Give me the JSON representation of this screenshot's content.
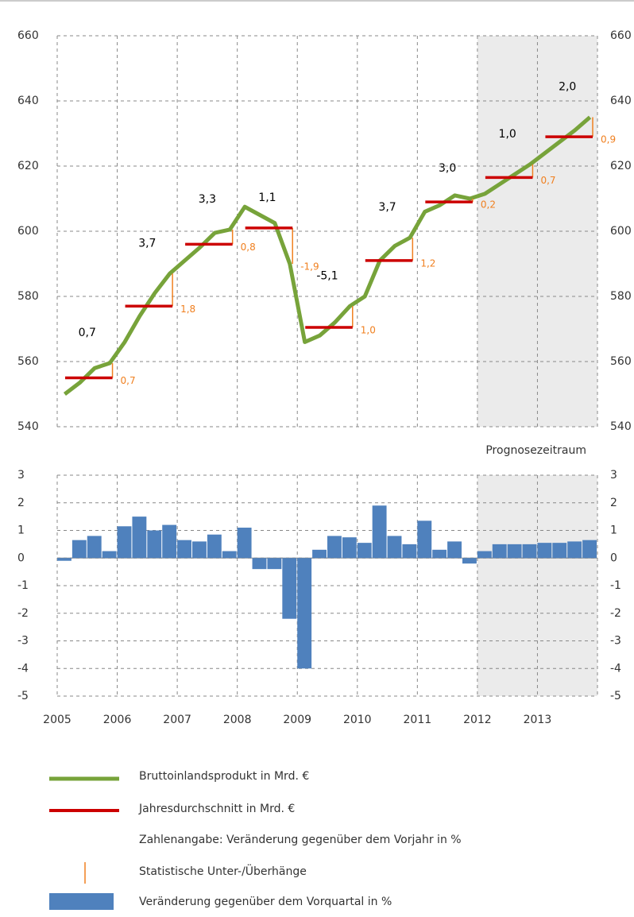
{
  "chart_data": [
    {
      "type": "line",
      "categories": [
        "2005",
        null,
        null,
        null,
        "2006",
        null,
        null,
        null,
        "2007",
        null,
        null,
        null,
        "2008",
        null,
        null,
        null,
        "2009",
        null,
        null,
        null,
        "2010",
        null,
        null,
        null,
        "2011",
        null,
        null,
        null,
        "2012",
        null,
        null,
        null,
        "2013",
        null,
        null,
        null
      ],
      "series": [
        {
          "name": "Bruttoinlandsprodukt in Mrd. €",
          "color": "#77a33a",
          "values": [
            550,
            553.5,
            558,
            559.5,
            566,
            574,
            581,
            587,
            591,
            595,
            599.5,
            600.5,
            607.5,
            605,
            602.5,
            590,
            566,
            568,
            572,
            577,
            580,
            591,
            595.5,
            598,
            606,
            608,
            611,
            610,
            611.5,
            614.5,
            617.5,
            620.5,
            624,
            627.5,
            631,
            635
          ]
        }
      ],
      "annual": {
        "name": "Jahresdurchschnitt in Mrd. €",
        "color": "#cc0000",
        "values": [
          555,
          577,
          596,
          601,
          570.5,
          591,
          609,
          616.5,
          629
        ]
      },
      "changes": {
        "name": "Zahlenangabe: Veränderung gegenüber dem Vorjahr in %",
        "values": [
          0.7,
          3.7,
          3.3,
          1.1,
          -5.1,
          3.7,
          3.0,
          1.0,
          2.0
        ],
        "value_labels": [
          "0,7",
          "3,7",
          "3,3",
          "1,1",
          "-5,1",
          "3,7",
          "3,0",
          "1,0",
          "2,0"
        ]
      },
      "overhangs": {
        "name": "Statistische Unter-/Überhänge",
        "color": "#f08020",
        "values": [
          0.7,
          1.8,
          0.8,
          -1.9,
          1.0,
          1.2,
          0.2,
          0.7,
          0.9
        ],
        "value_labels": [
          "0,7",
          "1,8",
          "0,8",
          "-1,9",
          "1,0",
          "1,2",
          "0,2",
          "0,7",
          "0,9"
        ]
      },
      "ylim": [
        540,
        660
      ],
      "yticks": [
        540,
        560,
        580,
        600,
        620,
        640,
        660
      ],
      "grid": true,
      "forecast": {
        "label": "Prognosezeitraum",
        "from": "2012"
      }
    },
    {
      "type": "bar",
      "categories": [
        "2005",
        null,
        null,
        null,
        "2006",
        null,
        null,
        null,
        "2007",
        null,
        null,
        null,
        "2008",
        null,
        null,
        null,
        "2009",
        null,
        null,
        null,
        "2010",
        null,
        null,
        null,
        "2011",
        null,
        null,
        null,
        "2012",
        null,
        null,
        null,
        "2013",
        null,
        null,
        null
      ],
      "series": [
        {
          "name": "Veränderung gegenüber dem Vorquartal in %",
          "color": "#4f81bd",
          "values": [
            -0.1,
            0.65,
            0.8,
            0.25,
            1.15,
            1.5,
            1.0,
            1.2,
            0.65,
            0.6,
            0.85,
            0.25,
            1.1,
            -0.4,
            -0.4,
            -2.2,
            -4.0,
            0.3,
            0.8,
            0.75,
            0.55,
            1.9,
            0.8,
            0.5,
            1.35,
            0.3,
            0.6,
            -0.2,
            0.25,
            0.5,
            0.5,
            0.5,
            0.55,
            0.55,
            0.6,
            0.65
          ]
        }
      ],
      "ylim": [
        -5,
        3
      ],
      "yticks": [
        -5,
        -4,
        -3,
        -2,
        -1,
        0,
        1,
        2,
        3
      ],
      "grid": true
    }
  ]
}
